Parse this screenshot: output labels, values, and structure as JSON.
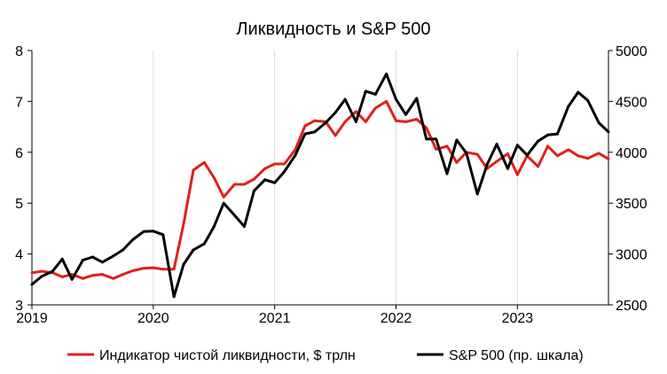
{
  "chart_data": {
    "type": "line",
    "title": "Ликвидность и S&P 500",
    "x_ticks": [
      "2019",
      "2020",
      "2021",
      "2022",
      "2023"
    ],
    "x_range": [
      2019.0,
      2023.75
    ],
    "y_left": {
      "ticks": [
        "3",
        "4",
        "5",
        "6",
        "7",
        "8"
      ],
      "range": [
        3,
        8
      ]
    },
    "y_right": {
      "ticks": [
        "2500",
        "3000",
        "3500",
        "4000",
        "4500",
        "5000"
      ],
      "range": [
        2500,
        5000
      ]
    },
    "grid": "vertical-only",
    "legend_position": "bottom",
    "series": [
      {
        "name": "Индикатор чистой ликвидности, $ трлн",
        "axis": "left",
        "color": "#e0201b",
        "x": [
          2019.0,
          2019.08,
          2019.17,
          2019.25,
          2019.33,
          2019.42,
          2019.5,
          2019.58,
          2019.67,
          2019.75,
          2019.83,
          2019.92,
          2020.0,
          2020.08,
          2020.17,
          2020.25,
          2020.33,
          2020.42,
          2020.5,
          2020.58,
          2020.67,
          2020.75,
          2020.83,
          2020.92,
          2021.0,
          2021.08,
          2021.17,
          2021.25,
          2021.33,
          2021.42,
          2021.5,
          2021.58,
          2021.67,
          2021.75,
          2021.83,
          2021.92,
          2022.0,
          2022.08,
          2022.17,
          2022.25,
          2022.33,
          2022.42,
          2022.5,
          2022.58,
          2022.67,
          2022.75,
          2022.83,
          2022.92,
          2023.0,
          2023.08,
          2023.17,
          2023.25,
          2023.33,
          2023.42,
          2023.5,
          2023.58,
          2023.67,
          2023.75
        ],
        "values": [
          3.63,
          3.66,
          3.63,
          3.55,
          3.6,
          3.52,
          3.58,
          3.6,
          3.52,
          3.6,
          3.67,
          3.72,
          3.73,
          3.7,
          3.7,
          4.6,
          5.65,
          5.8,
          5.5,
          5.12,
          5.37,
          5.37,
          5.47,
          5.68,
          5.77,
          5.77,
          6.05,
          6.52,
          6.62,
          6.6,
          6.33,
          6.6,
          6.8,
          6.6,
          6.87,
          7.0,
          6.62,
          6.6,
          6.65,
          6.48,
          6.06,
          6.12,
          5.8,
          6.0,
          5.96,
          5.68,
          5.82,
          5.97,
          5.56,
          5.93,
          5.72,
          6.12,
          5.93,
          6.05,
          5.93,
          5.88,
          5.98,
          5.87
        ]
      },
      {
        "name": "S&P 500 (пр. шкала)",
        "axis": "right",
        "color": "#000000",
        "x": [
          2019.0,
          2019.08,
          2019.17,
          2019.25,
          2019.33,
          2019.42,
          2019.5,
          2019.58,
          2019.67,
          2019.75,
          2019.83,
          2019.92,
          2020.0,
          2020.08,
          2020.17,
          2020.25,
          2020.33,
          2020.42,
          2020.5,
          2020.58,
          2020.67,
          2020.75,
          2020.83,
          2020.92,
          2021.0,
          2021.08,
          2021.17,
          2021.25,
          2021.33,
          2021.42,
          2021.5,
          2021.58,
          2021.67,
          2021.75,
          2021.83,
          2021.92,
          2022.0,
          2022.08,
          2022.17,
          2022.25,
          2022.33,
          2022.42,
          2022.5,
          2022.58,
          2022.67,
          2022.75,
          2022.83,
          2022.92,
          2023.0,
          2023.08,
          2023.17,
          2023.25,
          2023.33,
          2023.42,
          2023.5,
          2023.58,
          2023.67,
          2023.75
        ],
        "values": [
          2700,
          2780,
          2830,
          2950,
          2750,
          2940,
          2970,
          2920,
          2980,
          3040,
          3140,
          3220,
          3225,
          3190,
          2580,
          2900,
          3040,
          3100,
          3270,
          3500,
          3380,
          3270,
          3620,
          3730,
          3700,
          3810,
          3970,
          4180,
          4200,
          4290,
          4390,
          4520,
          4300,
          4600,
          4570,
          4770,
          4520,
          4370,
          4530,
          4130,
          4130,
          3790,
          4120,
          3990,
          3590,
          3880,
          4080,
          3840,
          4070,
          3970,
          4110,
          4170,
          4180,
          4450,
          4590,
          4510,
          4290,
          4200
        ]
      }
    ]
  }
}
